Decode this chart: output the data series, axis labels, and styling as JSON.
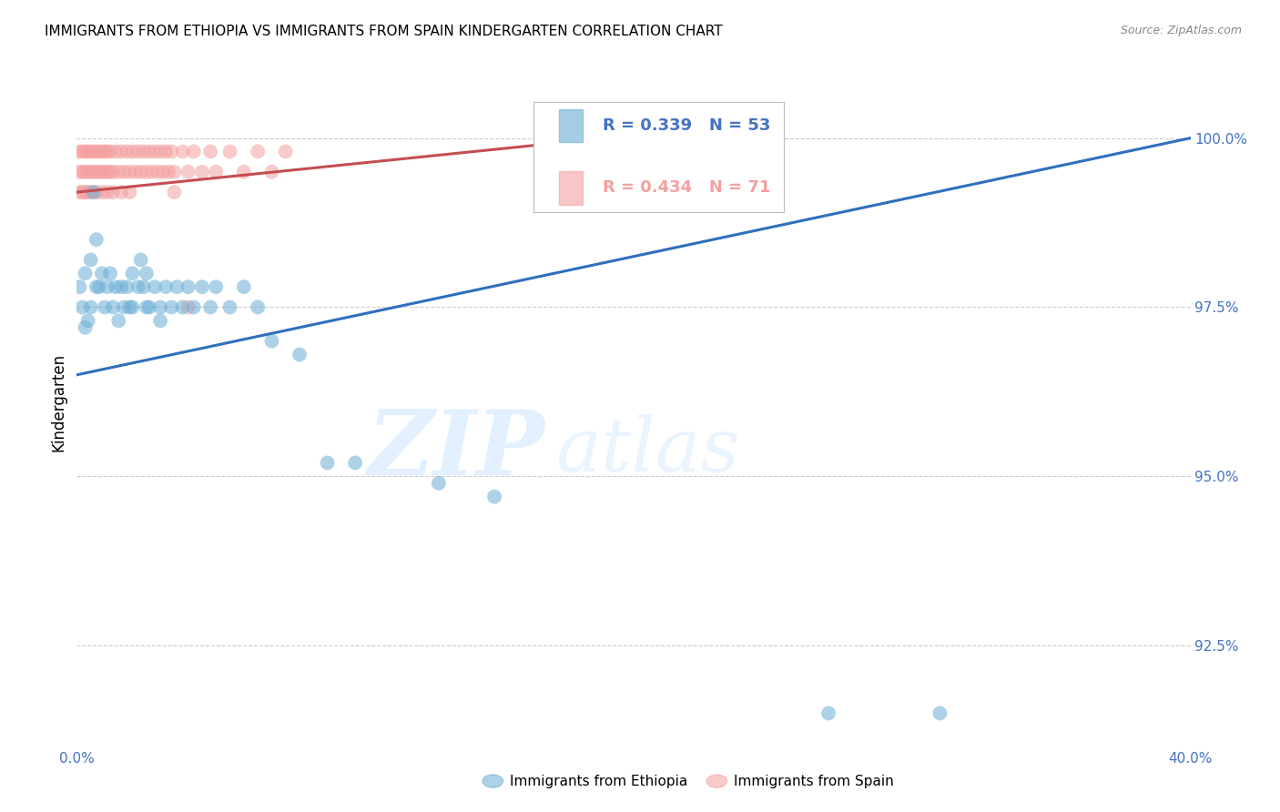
{
  "title": "IMMIGRANTS FROM ETHIOPIA VS IMMIGRANTS FROM SPAIN KINDERGARTEN CORRELATION CHART",
  "source": "Source: ZipAtlas.com",
  "ylabel": "Kindergarten",
  "yticks": [
    92.5,
    95.0,
    97.5,
    100.0
  ],
  "ytick_labels": [
    "92.5%",
    "95.0%",
    "97.5%",
    "100.0%"
  ],
  "xmin": 0.0,
  "xmax": 0.4,
  "ymin": 91.0,
  "ymax": 101.2,
  "watermark_zip": "ZIP",
  "watermark_atlas": "atlas",
  "legend_blue_r": "R = 0.339",
  "legend_blue_n": "N = 53",
  "legend_pink_r": "R = 0.434",
  "legend_pink_n": "N = 71",
  "legend_blue_label": "Immigrants from Ethiopia",
  "legend_pink_label": "Immigrants from Spain",
  "blue_color": "#6aaed6",
  "pink_color": "#f4a0a0",
  "trendline_blue_color": "#2f6fbd",
  "trendline_pink_color": "#c44e52",
  "blue_scatter_x": [
    0.001,
    0.002,
    0.003,
    0.004,
    0.005,
    0.006,
    0.007,
    0.008,
    0.009,
    0.01,
    0.011,
    0.012,
    0.013,
    0.014,
    0.015,
    0.016,
    0.017,
    0.018,
    0.019,
    0.02,
    0.022,
    0.023,
    0.024,
    0.025,
    0.026,
    0.028,
    0.03,
    0.032,
    0.034,
    0.036,
    0.038,
    0.04,
    0.042,
    0.045,
    0.048,
    0.05,
    0.055,
    0.06,
    0.065,
    0.07,
    0.08,
    0.09,
    0.1,
    0.13,
    0.15,
    0.27,
    0.31,
    0.003,
    0.005,
    0.007,
    0.02,
    0.025,
    0.03
  ],
  "blue_scatter_y": [
    97.8,
    97.5,
    98.0,
    97.3,
    98.2,
    99.2,
    98.5,
    97.8,
    98.0,
    97.5,
    97.8,
    98.0,
    97.5,
    97.8,
    97.3,
    97.8,
    97.5,
    97.8,
    97.5,
    98.0,
    97.8,
    98.2,
    97.8,
    98.0,
    97.5,
    97.8,
    97.3,
    97.8,
    97.5,
    97.8,
    97.5,
    97.8,
    97.5,
    97.8,
    97.5,
    97.8,
    97.5,
    97.8,
    97.5,
    97.0,
    96.8,
    95.2,
    95.2,
    94.9,
    94.7,
    91.5,
    91.5,
    97.2,
    97.5,
    97.8,
    97.5,
    97.5,
    97.5
  ],
  "pink_scatter_x": [
    0.001,
    0.001,
    0.002,
    0.002,
    0.003,
    0.003,
    0.004,
    0.004,
    0.005,
    0.005,
    0.006,
    0.006,
    0.007,
    0.007,
    0.008,
    0.008,
    0.009,
    0.009,
    0.01,
    0.01,
    0.011,
    0.011,
    0.012,
    0.012,
    0.013,
    0.014,
    0.015,
    0.016,
    0.017,
    0.018,
    0.019,
    0.02,
    0.021,
    0.022,
    0.023,
    0.024,
    0.025,
    0.026,
    0.027,
    0.028,
    0.029,
    0.03,
    0.031,
    0.032,
    0.033,
    0.034,
    0.035,
    0.038,
    0.04,
    0.042,
    0.045,
    0.048,
    0.05,
    0.055,
    0.06,
    0.065,
    0.07,
    0.075,
    0.001,
    0.002,
    0.003,
    0.004,
    0.005,
    0.007,
    0.009,
    0.011,
    0.013,
    0.016,
    0.019,
    0.035,
    0.04
  ],
  "pink_scatter_y": [
    99.8,
    99.5,
    99.8,
    99.5,
    99.8,
    99.5,
    99.5,
    99.8,
    99.5,
    99.8,
    99.5,
    99.8,
    99.5,
    99.8,
    99.5,
    99.8,
    99.5,
    99.8,
    99.5,
    99.8,
    99.5,
    99.8,
    99.5,
    99.8,
    99.5,
    99.8,
    99.5,
    99.8,
    99.5,
    99.8,
    99.5,
    99.8,
    99.5,
    99.8,
    99.5,
    99.8,
    99.5,
    99.8,
    99.5,
    99.8,
    99.5,
    99.8,
    99.5,
    99.8,
    99.5,
    99.8,
    99.5,
    99.8,
    99.5,
    99.8,
    99.5,
    99.8,
    99.5,
    99.8,
    99.5,
    99.8,
    99.5,
    99.8,
    99.2,
    99.2,
    99.2,
    99.2,
    99.2,
    99.2,
    99.2,
    99.2,
    99.2,
    99.2,
    99.2,
    99.2,
    97.5
  ],
  "grid_color": "#cccccc",
  "tick_color": "#4472C4",
  "trendline_blue_x0": 0.0,
  "trendline_blue_y0": 96.5,
  "trendline_blue_x1": 0.4,
  "trendline_blue_y1": 100.0,
  "trendline_pink_x0": 0.0,
  "trendline_pink_y0": 99.2,
  "trendline_pink_x1": 0.19,
  "trendline_pink_y1": 100.0
}
